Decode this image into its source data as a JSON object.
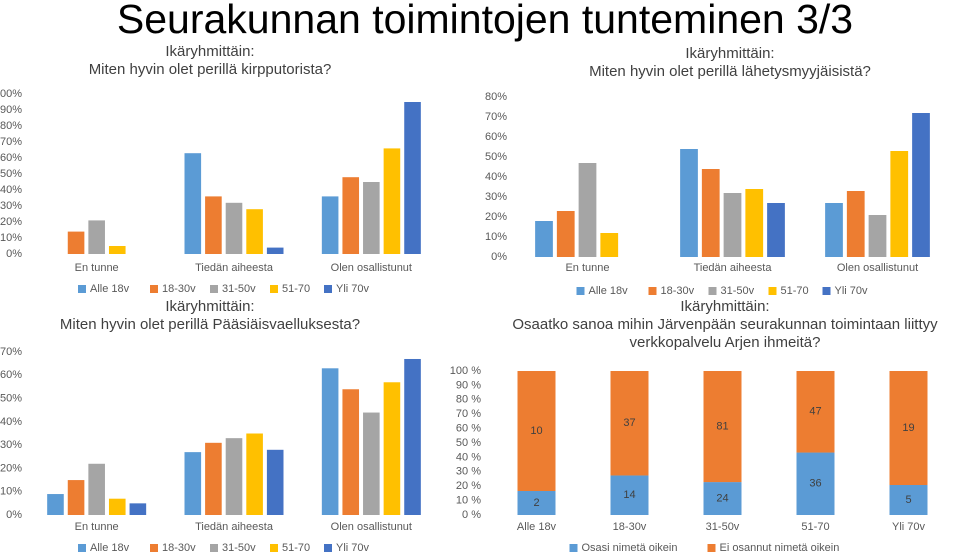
{
  "title": "Seurakunnan toimintojen tunteminen 3/3",
  "chart_data": [
    {
      "type": "bar",
      "title": "Ikäryhmittäin:",
      "subtitle": "Miten hyvin olet perillä kirpputorista?",
      "categories": [
        "En tunne",
        "Tiedän aiheesta",
        "Olen osallistunut"
      ],
      "series": [
        {
          "name": "Alle 18v",
          "color": "#5b9bd5",
          "values": [
            0,
            63,
            36
          ]
        },
        {
          "name": "18-30v",
          "color": "#ed7d31",
          "values": [
            14,
            36,
            48
          ]
        },
        {
          "name": "31-50v",
          "color": "#a5a5a5",
          "values": [
            21,
            32,
            45
          ]
        },
        {
          "name": "51-70",
          "color": "#ffc000",
          "values": [
            5,
            28,
            66
          ]
        },
        {
          "name": "Yli 70v",
          "color": "#4472c4",
          "values": [
            0,
            4,
            95
          ]
        }
      ],
      "ylim": [
        0,
        100
      ],
      "yticks": [
        {
          "value": 0,
          "label": "0%"
        },
        {
          "value": 10,
          "label": "10%"
        },
        {
          "value": 20,
          "label": "20%"
        },
        {
          "value": 30,
          "label": "30%"
        },
        {
          "value": 40,
          "label": "40%"
        },
        {
          "value": 50,
          "label": "50%"
        },
        {
          "value": 60,
          "label": "60%"
        },
        {
          "value": 70,
          "label": "70%"
        },
        {
          "value": 80,
          "label": "80%"
        },
        {
          "value": 90,
          "label": "90%"
        },
        {
          "value": 100,
          "label": "100%"
        }
      ],
      "legend": "bottom"
    },
    {
      "type": "bar",
      "title": "Ikäryhmittäin:",
      "subtitle": "Miten hyvin olet perillä lähetysmyyjäisistä?",
      "categories": [
        "En tunne",
        "Tiedän aiheesta",
        "Olen osallistunut"
      ],
      "series": [
        {
          "name": "Alle 18v",
          "color": "#5b9bd5",
          "values": [
            18,
            54,
            27
          ]
        },
        {
          "name": "18-30v",
          "color": "#ed7d31",
          "values": [
            23,
            44,
            33
          ]
        },
        {
          "name": "31-50v",
          "color": "#a5a5a5",
          "values": [
            47,
            32,
            21
          ]
        },
        {
          "name": "51-70",
          "color": "#ffc000",
          "values": [
            12,
            34,
            53
          ]
        },
        {
          "name": "Yli 70v",
          "color": "#4472c4",
          "values": [
            0,
            27,
            72
          ]
        }
      ],
      "ylim": [
        0,
        80
      ],
      "yticks": [
        {
          "value": 0,
          "label": "0%"
        },
        {
          "value": 10,
          "label": "10%"
        },
        {
          "value": 20,
          "label": "20%"
        },
        {
          "value": 30,
          "label": "30%"
        },
        {
          "value": 40,
          "label": "40%"
        },
        {
          "value": 50,
          "label": "50%"
        },
        {
          "value": 60,
          "label": "60%"
        },
        {
          "value": 70,
          "label": "70%"
        },
        {
          "value": 80,
          "label": "80%"
        }
      ],
      "legend": "bottom"
    },
    {
      "type": "bar",
      "title": "Ikäryhmittäin:",
      "subtitle": "Miten hyvin olet perillä Pääsiäisvaelluksesta?",
      "categories": [
        "En tunne",
        "Tiedän aiheesta",
        "Olen osallistunut"
      ],
      "series": [
        {
          "name": "Alle 18v",
          "color": "#5b9bd5",
          "values": [
            9,
            27,
            63
          ]
        },
        {
          "name": "18-30v",
          "color": "#ed7d31",
          "values": [
            15,
            31,
            54
          ]
        },
        {
          "name": "31-50v",
          "color": "#a5a5a5",
          "values": [
            22,
            33,
            44
          ]
        },
        {
          "name": "51-70",
          "color": "#ffc000",
          "values": [
            7,
            35,
            57
          ]
        },
        {
          "name": "Yli 70v",
          "color": "#4472c4",
          "values": [
            5,
            28,
            67
          ]
        }
      ],
      "ylim": [
        0,
        70
      ],
      "yticks": [
        {
          "value": 0,
          "label": "0%"
        },
        {
          "value": 10,
          "label": "10%"
        },
        {
          "value": 20,
          "label": "20%"
        },
        {
          "value": 30,
          "label": "30%"
        },
        {
          "value": 40,
          "label": "40%"
        },
        {
          "value": 50,
          "label": "50%"
        },
        {
          "value": 60,
          "label": "60%"
        },
        {
          "value": 70,
          "label": "70%"
        }
      ],
      "legend": "bottom"
    },
    {
      "type": "stacked_percent",
      "title": "Ikäryhmittäin:",
      "subtitle": "Osaatko sanoa mihin Järvenpään seurakunnan toimintaan liittyy verkkopalvelu Arjen ihmeitä?",
      "categories": [
        "Alle 18v",
        "18-30v",
        "31-50v",
        "51-70",
        "Yli 70v"
      ],
      "series": [
        {
          "name": "Osasi nimetä oikein",
          "color": "#5b9bd5",
          "values": [
            2,
            14,
            24,
            36,
            5
          ]
        },
        {
          "name": "Ei osannut nimetä oikein",
          "color": "#ed7d31",
          "values": [
            10,
            37,
            81,
            47,
            19
          ]
        }
      ],
      "ylim": [
        0,
        100
      ],
      "yticks": [
        {
          "value": 0,
          "label": "0 %"
        },
        {
          "value": 10,
          "label": "10 %"
        },
        {
          "value": 20,
          "label": "20 %"
        },
        {
          "value": 30,
          "label": "30 %"
        },
        {
          "value": 40,
          "label": "40 %"
        },
        {
          "value": 50,
          "label": "50 %"
        },
        {
          "value": 60,
          "label": "60 %"
        },
        {
          "value": 70,
          "label": "70 %"
        },
        {
          "value": 80,
          "label": "80 %"
        },
        {
          "value": 90,
          "label": "90 %"
        },
        {
          "value": 100,
          "label": "100 %"
        }
      ],
      "legend": "bottom",
      "data_labels": true
    }
  ]
}
